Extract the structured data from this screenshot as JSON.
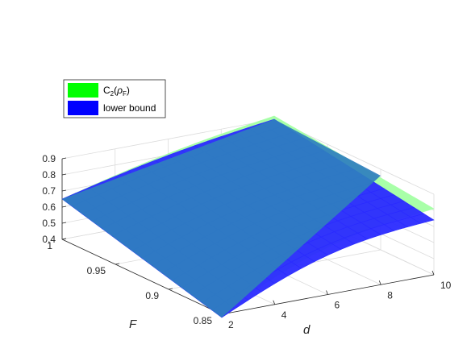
{
  "chart_data": {
    "type": "surface",
    "title": "",
    "xlabel": "d",
    "ylabel": "F",
    "zlabel": "",
    "xlim": [
      2,
      10
    ],
    "ylim": [
      0.85,
      1
    ],
    "zlim": [
      0.4,
      0.9
    ],
    "xticks": [
      "2",
      "4",
      "6",
      "8",
      "10"
    ],
    "yticks": [
      "1",
      "0.95",
      "0.9",
      "0.85"
    ],
    "zticks": [
      "0.4",
      "0.5",
      "0.6",
      "0.7",
      "0.8",
      "0.9"
    ],
    "grid": true,
    "legend_position": "top-left",
    "legend": [
      {
        "label_main": "C",
        "label_sub1": "2",
        "label_mid": "(",
        "label_rho": "ρ",
        "label_sub2": "F",
        "label_end": ")",
        "color": "#00ff00"
      },
      {
        "label": "lower bound",
        "color": "#0000ff"
      }
    ],
    "series": [
      {
        "name": "C2(ρF)",
        "color": "#00ff00",
        "surface_color": "#a8ffa8",
        "corners": [
          {
            "d": 2,
            "F": 1.0,
            "z": 0.65
          },
          {
            "d": 10,
            "F": 1.0,
            "z": 0.92
          },
          {
            "d": 10,
            "F": 0.85,
            "z": 0.81
          },
          {
            "d": 2,
            "F": 0.85,
            "z": 0.41
          }
        ]
      },
      {
        "name": "lower bound",
        "color": "#0000ff",
        "surface_color": "#2a2aff",
        "corners": [
          {
            "d": 2,
            "F": 1.0,
            "z": 0.65
          },
          {
            "d": 10,
            "F": 1.0,
            "z": 0.9
          },
          {
            "d": 10,
            "F": 0.85,
            "z": 0.74
          },
          {
            "d": 2,
            "F": 0.85,
            "z": 0.38
          }
        ]
      }
    ]
  }
}
